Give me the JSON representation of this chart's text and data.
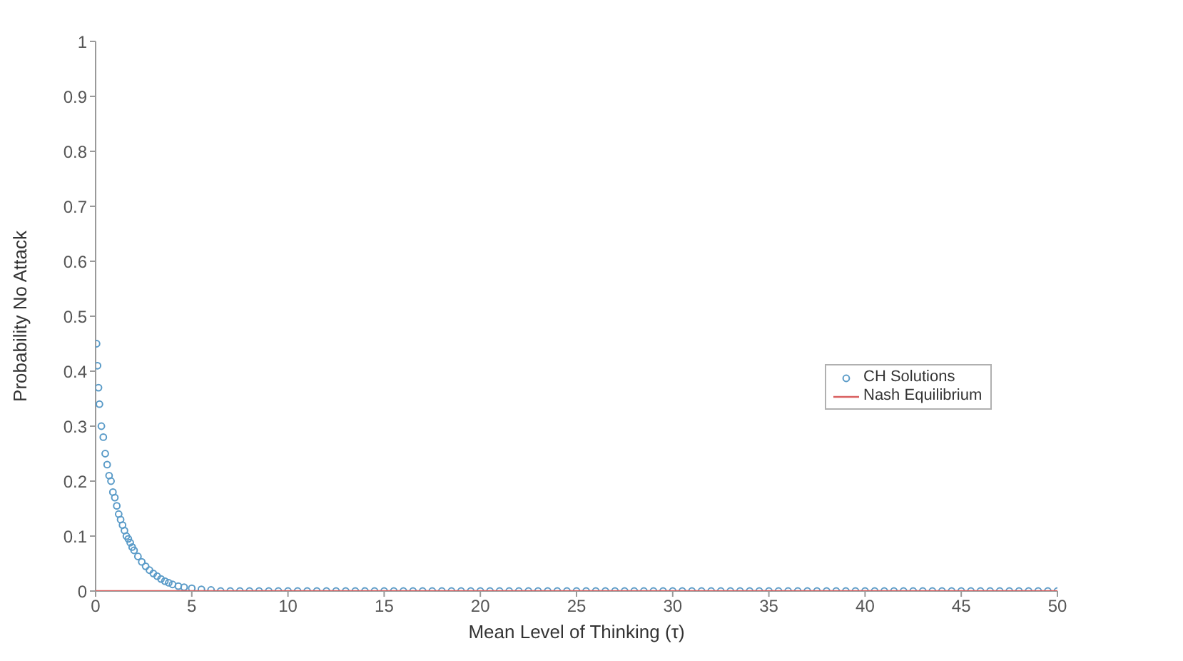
{
  "chart_data": {
    "type": "scatter",
    "xlabel": "Mean Level of Thinking (τ)",
    "ylabel": "Probability No Attack",
    "xlim": [
      0,
      50
    ],
    "ylim": [
      0,
      1
    ],
    "xticks": [
      0,
      5,
      10,
      15,
      20,
      25,
      30,
      35,
      40,
      45,
      50
    ],
    "yticks": [
      0,
      0.1,
      0.2,
      0.3,
      0.4,
      0.5,
      0.6,
      0.7,
      0.8,
      0.9,
      1
    ],
    "legend": "right",
    "series": [
      {
        "name": "CH Solutions",
        "marker": "circle",
        "color": "#5a9bc8",
        "x": [
          0.05,
          0.1,
          0.15,
          0.2,
          0.3,
          0.4,
          0.5,
          0.6,
          0.7,
          0.8,
          0.9,
          1,
          1.1,
          1.2,
          1.3,
          1.4,
          1.5,
          1.6,
          1.7,
          1.8,
          1.9,
          2,
          2.2,
          2.4,
          2.6,
          2.8,
          3,
          3.2,
          3.4,
          3.6,
          3.8,
          4,
          4.3,
          4.6,
          5,
          5.5,
          6,
          6.5,
          7,
          7.5,
          8,
          8.5,
          9,
          9.5,
          10,
          10.5,
          11,
          11.5,
          12,
          12.5,
          13,
          13.5,
          14,
          14.5,
          15,
          15.5,
          16,
          16.5,
          17,
          17.5,
          18,
          18.5,
          19,
          19.5,
          20,
          20.5,
          21,
          21.5,
          22,
          22.5,
          23,
          23.5,
          24,
          24.5,
          25,
          25.5,
          26,
          26.5,
          27,
          27.5,
          28,
          28.5,
          29,
          29.5,
          30,
          30.5,
          31,
          31.5,
          32,
          32.5,
          33,
          33.5,
          34,
          34.5,
          35,
          35.5,
          36,
          36.5,
          37,
          37.5,
          38,
          38.5,
          39,
          39.5,
          40,
          40.5,
          41,
          41.5,
          42,
          42.5,
          43,
          43.5,
          44,
          44.5,
          45,
          45.5,
          46,
          46.5,
          47,
          47.5,
          48,
          48.5,
          49,
          49.5,
          50
        ],
        "values": [
          0.45,
          0.41,
          0.37,
          0.34,
          0.3,
          0.28,
          0.25,
          0.23,
          0.21,
          0.2,
          0.18,
          0.17,
          0.155,
          0.14,
          0.13,
          0.12,
          0.11,
          0.1,
          0.095,
          0.088,
          0.08,
          0.074,
          0.063,
          0.053,
          0.045,
          0.038,
          0.032,
          0.027,
          0.022,
          0.018,
          0.015,
          0.012,
          0.009,
          0.007,
          0.005,
          0.003,
          0.002,
          0,
          0,
          0,
          0,
          0,
          0,
          0,
          0,
          0,
          0,
          0,
          0,
          0,
          0,
          0,
          0,
          0,
          0,
          0,
          0,
          0,
          0,
          0,
          0,
          0,
          0,
          0,
          0,
          0,
          0,
          0,
          0,
          0,
          0,
          0,
          0,
          0,
          0,
          0,
          0,
          0,
          0,
          0,
          0,
          0,
          0,
          0,
          0,
          0,
          0,
          0,
          0,
          0,
          0,
          0,
          0,
          0,
          0,
          0,
          0,
          0,
          0,
          0,
          0,
          0,
          0,
          0,
          0,
          0,
          0,
          0,
          0,
          0,
          0,
          0,
          0,
          0,
          0,
          0,
          0,
          0,
          0,
          0,
          0,
          0,
          0,
          0,
          0
        ]
      },
      {
        "name": "Nash Equilibrium",
        "type": "line",
        "line_style": "solid",
        "color": "#d95f5f",
        "x": [
          0,
          50
        ],
        "values": [
          0,
          0
        ]
      }
    ]
  }
}
